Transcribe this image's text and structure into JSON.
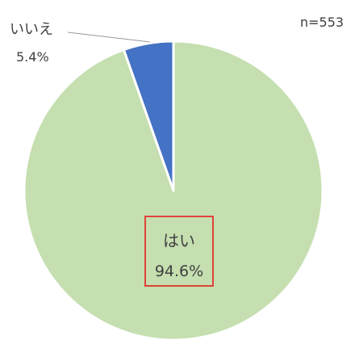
{
  "chart_data": {
    "type": "pie",
    "sample_size_label": "n=553",
    "slices": [
      {
        "label": "はい",
        "value": 94.6,
        "value_label": "94.6%",
        "color": "#c5dfb0"
      },
      {
        "label": "いいえ",
        "value": 5.4,
        "value_label": "5.4%",
        "color": "#4472c4"
      }
    ],
    "highlight_color": "#e0433a"
  }
}
